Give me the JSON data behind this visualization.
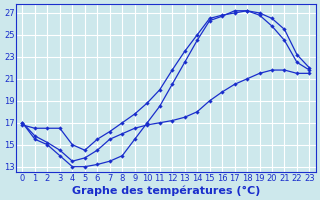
{
  "xlabel": "Graphe des températures (°C)",
  "background_color": "#cde8ec",
  "grid_color": "#ffffff",
  "line_color": "#1a2ecc",
  "xlim": [
    -0.5,
    23.5
  ],
  "ylim": [
    12.5,
    27.8
  ],
  "xticks": [
    0,
    1,
    2,
    3,
    4,
    5,
    6,
    7,
    8,
    9,
    10,
    11,
    12,
    13,
    14,
    15,
    16,
    17,
    18,
    19,
    20,
    21,
    22,
    23
  ],
  "yticks": [
    13,
    15,
    17,
    19,
    21,
    23,
    25,
    27
  ],
  "line1_x": [
    0,
    1,
    2,
    3,
    4,
    5,
    6,
    7,
    8,
    9,
    10,
    11,
    12,
    13,
    14,
    15,
    16,
    17,
    18,
    19,
    20,
    21,
    22,
    23
  ],
  "line1_y": [
    17.0,
    15.5,
    15.0,
    14.0,
    13.0,
    13.0,
    13.2,
    13.5,
    14.0,
    15.5,
    17.0,
    18.5,
    20.5,
    22.5,
    24.5,
    26.3,
    26.7,
    27.2,
    27.2,
    27.0,
    26.5,
    25.5,
    23.2,
    22.0
  ],
  "line2_x": [
    0,
    1,
    2,
    3,
    4,
    5,
    6,
    7,
    8,
    9,
    10,
    11,
    12,
    13,
    14,
    15,
    16,
    17,
    18,
    19,
    20,
    21,
    22,
    23
  ],
  "line2_y": [
    16.8,
    16.5,
    16.5,
    16.5,
    15.0,
    14.5,
    15.5,
    16.2,
    17.0,
    17.8,
    18.8,
    20.0,
    21.8,
    23.5,
    25.0,
    26.5,
    26.8,
    27.0,
    27.2,
    26.8,
    25.8,
    24.5,
    22.5,
    21.8
  ],
  "line3_x": [
    0,
    1,
    2,
    3,
    4,
    5,
    6,
    7,
    8,
    9,
    10,
    11,
    12,
    13,
    14,
    15,
    16,
    17,
    18,
    19,
    20,
    21,
    22,
    23
  ],
  "line3_y": [
    17.0,
    15.8,
    15.2,
    14.5,
    13.5,
    13.8,
    14.5,
    15.5,
    16.0,
    16.5,
    16.8,
    17.0,
    17.2,
    17.5,
    18.0,
    19.0,
    19.8,
    20.5,
    21.0,
    21.5,
    21.8,
    21.8,
    21.5,
    21.5
  ],
  "tick_fontsize": 6.0,
  "xlabel_fontsize": 8.0
}
